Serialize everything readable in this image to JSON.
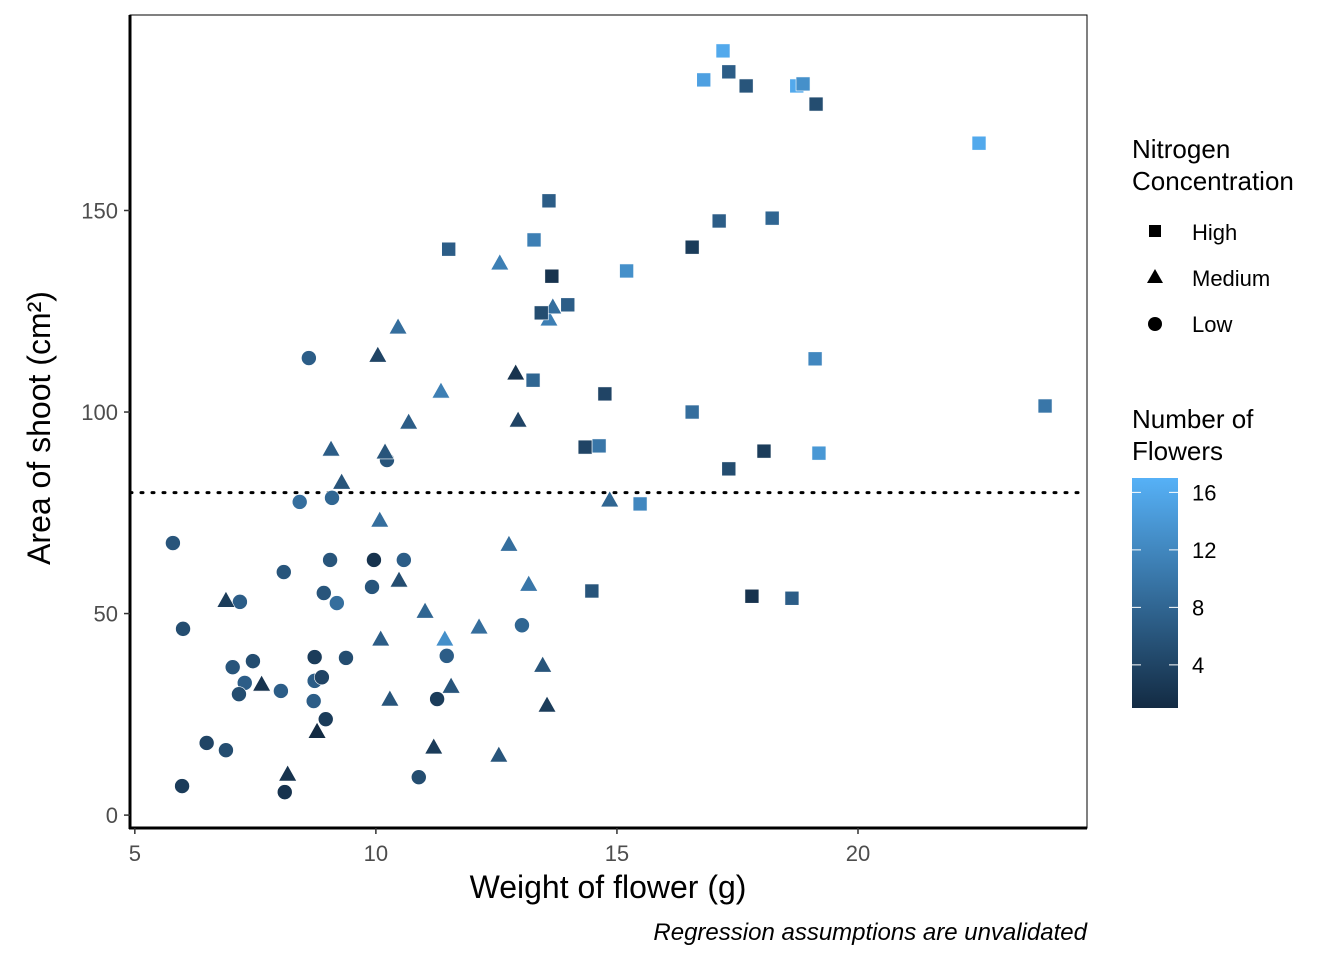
{
  "chart_data": {
    "type": "scatter",
    "title": "",
    "xlabel": "Weight of flower (g)",
    "ylabel": "Area of shoot (cm²)",
    "caption": "Regression assumptions are unvalidated",
    "xlim": [
      4.9,
      24.75
    ],
    "ylim": [
      -3.2,
      198.5
    ],
    "xticks": [
      5,
      10,
      15,
      20
    ],
    "yticks": [
      0,
      50,
      100,
      150
    ],
    "hline": 80,
    "grid": false,
    "shape_legend": {
      "title_lines": [
        "Nitrogen",
        "Concentration"
      ],
      "items": [
        {
          "label": "High",
          "shape": "square"
        },
        {
          "label": "Medium",
          "shape": "triangle"
        },
        {
          "label": "Low",
          "shape": "circle"
        }
      ],
      "placement": "right"
    },
    "color_legend": {
      "title_lines": [
        "Number of",
        "Flowers"
      ],
      "ticks": [
        4,
        8,
        12,
        16
      ],
      "range": [
        1,
        17
      ],
      "low_color": "#132B43",
      "high_color": "#56B1F7",
      "placement": "right"
    },
    "series": [
      {
        "name": "Low",
        "shape": "circle",
        "points": [
          [
            5.79,
            67.5,
            6
          ],
          [
            6.0,
            46.2,
            5
          ],
          [
            5.98,
            7.2,
            3
          ],
          [
            6.49,
            17.9,
            4
          ],
          [
            6.89,
            16.1,
            5
          ],
          [
            7.03,
            36.7,
            6
          ],
          [
            7.18,
            52.9,
            7
          ],
          [
            7.28,
            32.8,
            7
          ],
          [
            7.16,
            30.0,
            5
          ],
          [
            7.45,
            38.2,
            5
          ],
          [
            8.03,
            30.8,
            7
          ],
          [
            8.09,
            60.3,
            6
          ],
          [
            8.11,
            5.7,
            2
          ],
          [
            8.42,
            77.7,
            9
          ],
          [
            8.61,
            113.4,
            7
          ],
          [
            8.73,
            33.3,
            7
          ],
          [
            8.71,
            28.3,
            7
          ],
          [
            8.73,
            39.2,
            3
          ],
          [
            8.88,
            34.2,
            4
          ],
          [
            8.96,
            23.8,
            3
          ],
          [
            8.92,
            55.1,
            6
          ],
          [
            9.05,
            63.3,
            6
          ],
          [
            9.09,
            78.7,
            8
          ],
          [
            9.19,
            52.6,
            9
          ],
          [
            9.38,
            39.0,
            5
          ],
          [
            9.92,
            56.6,
            6
          ],
          [
            9.96,
            63.3,
            2
          ],
          [
            10.23,
            88.1,
            6
          ],
          [
            10.58,
            63.3,
            7
          ],
          [
            10.89,
            9.4,
            5
          ],
          [
            11.27,
            28.8,
            3
          ],
          [
            11.47,
            39.5,
            7
          ],
          [
            13.03,
            47.1,
            8
          ]
        ]
      },
      {
        "name": "Medium",
        "shape": "triangle",
        "points": [
          [
            6.89,
            53.3,
            3
          ],
          [
            7.63,
            32.5,
            2
          ],
          [
            8.17,
            10.2,
            2
          ],
          [
            8.78,
            20.8,
            1
          ],
          [
            9.07,
            90.8,
            7
          ],
          [
            9.29,
            82.6,
            6
          ],
          [
            10.04,
            114.1,
            4
          ],
          [
            10.08,
            73.2,
            9
          ],
          [
            10.19,
            90.1,
            6
          ],
          [
            10.1,
            43.7,
            7
          ],
          [
            10.46,
            121.1,
            9
          ],
          [
            10.48,
            58.3,
            5
          ],
          [
            10.29,
            28.8,
            6
          ],
          [
            10.68,
            97.5,
            7
          ],
          [
            11.02,
            50.6,
            8
          ],
          [
            11.35,
            105.2,
            11
          ],
          [
            11.2,
            16.9,
            3
          ],
          [
            11.43,
            43.7,
            13
          ],
          [
            11.56,
            32.0,
            6
          ],
          [
            12.14,
            46.7,
            9
          ],
          [
            12.57,
            137.0,
            11
          ],
          [
            12.55,
            14.9,
            6
          ],
          [
            12.76,
            67.2,
            9
          ],
          [
            12.9,
            109.7,
            2
          ],
          [
            12.95,
            98.0,
            4
          ],
          [
            13.17,
            57.3,
            10
          ],
          [
            13.46,
            37.2,
            6
          ],
          [
            13.55,
            27.3,
            3
          ],
          [
            13.59,
            123.1,
            11
          ],
          [
            13.67,
            126.1,
            9
          ],
          [
            14.85,
            78.2,
            8
          ]
        ]
      },
      {
        "name": "High",
        "shape": "square",
        "points": [
          [
            11.51,
            140.4,
            7
          ],
          [
            13.59,
            152.4,
            7
          ],
          [
            13.28,
            142.7,
            11
          ],
          [
            13.65,
            133.7,
            2
          ],
          [
            13.43,
            124.6,
            5
          ],
          [
            13.98,
            126.6,
            7
          ],
          [
            13.26,
            107.9,
            8
          ],
          [
            14.75,
            104.5,
            4
          ],
          [
            14.34,
            91.3,
            4
          ],
          [
            14.63,
            91.6,
            10
          ],
          [
            15.2,
            135.0,
            13
          ],
          [
            15.48,
            77.2,
            12
          ],
          [
            14.48,
            55.6,
            6
          ],
          [
            16.56,
            140.9,
            3
          ],
          [
            16.56,
            100.0,
            9
          ],
          [
            16.8,
            182.4,
            15
          ],
          [
            17.12,
            147.4,
            7
          ],
          [
            17.2,
            189.6,
            16
          ],
          [
            17.32,
            184.4,
            7
          ],
          [
            17.32,
            85.9,
            5
          ],
          [
            17.68,
            180.9,
            6
          ],
          [
            17.8,
            54.3,
            2
          ],
          [
            18.05,
            90.3,
            3
          ],
          [
            18.22,
            148.1,
            8
          ],
          [
            18.63,
            53.8,
            7
          ],
          [
            18.73,
            180.9,
            16
          ],
          [
            18.86,
            181.4,
            13
          ],
          [
            19.13,
            176.4,
            5
          ],
          [
            19.11,
            113.2,
            12
          ],
          [
            19.19,
            89.8,
            14
          ],
          [
            22.51,
            166.7,
            16
          ],
          [
            23.88,
            101.5,
            10
          ]
        ]
      }
    ]
  }
}
